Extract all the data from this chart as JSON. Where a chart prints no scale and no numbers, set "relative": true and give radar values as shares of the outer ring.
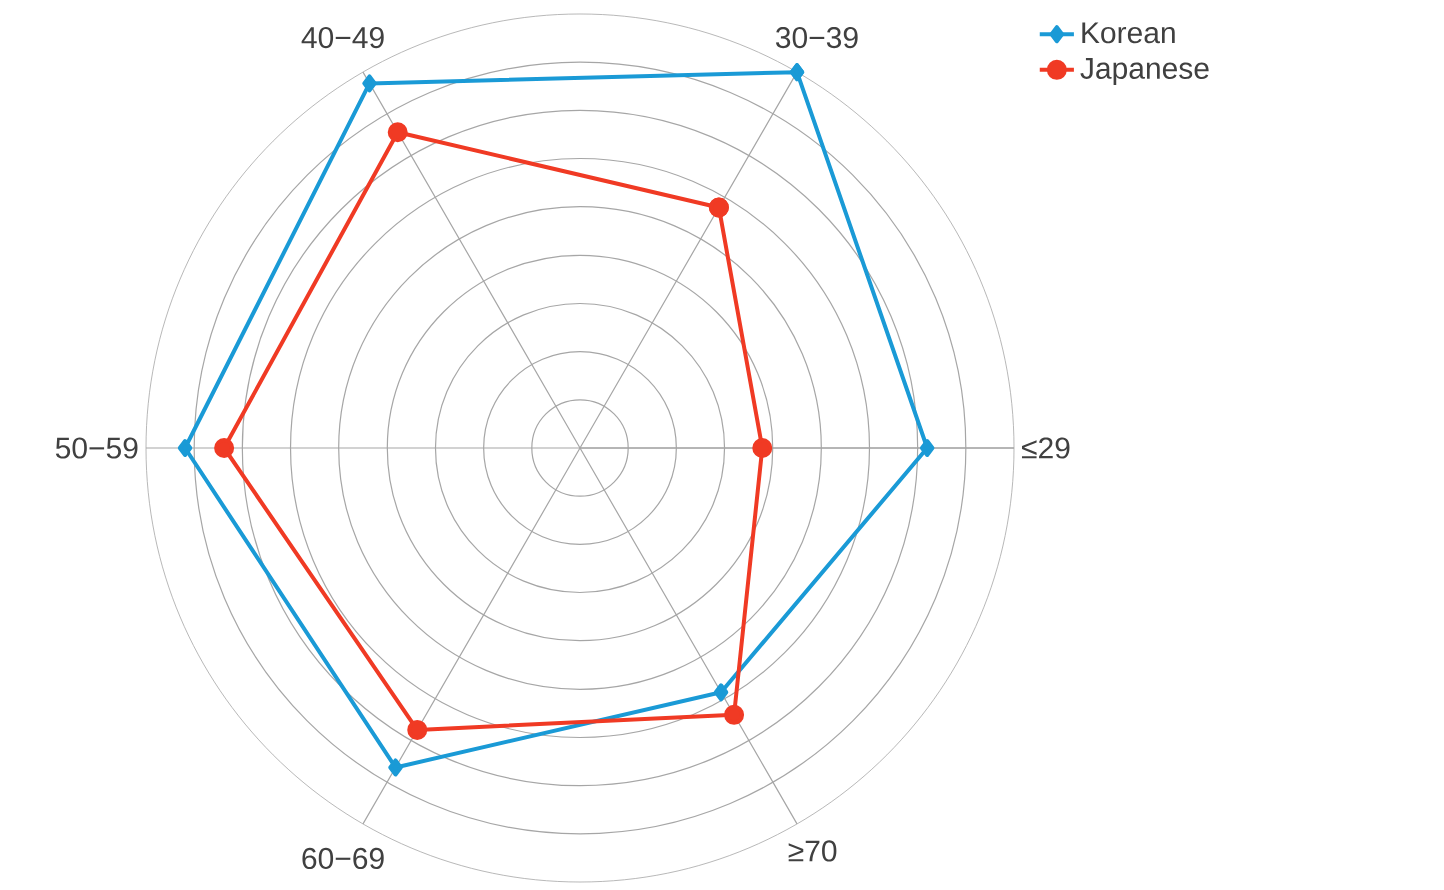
{
  "chart_data": {
    "type": "radar",
    "relative": true,
    "grid": true,
    "legend": "top right",
    "categories": [
      "30−39",
      "≤29",
      "≥70",
      "60−69",
      "50−59",
      "40−49"
    ],
    "series": [
      {
        "name": "Korean",
        "color": "#1a9ad6",
        "marker": "diamond",
        "values": [
          1.0,
          0.8,
          0.65,
          0.85,
          0.91,
          0.97
        ]
      },
      {
        "name": "Japanese",
        "color": "#f03a24",
        "marker": "circle",
        "values": [
          0.64,
          0.42,
          0.71,
          0.75,
          0.82,
          0.84
        ]
      }
    ]
  }
}
